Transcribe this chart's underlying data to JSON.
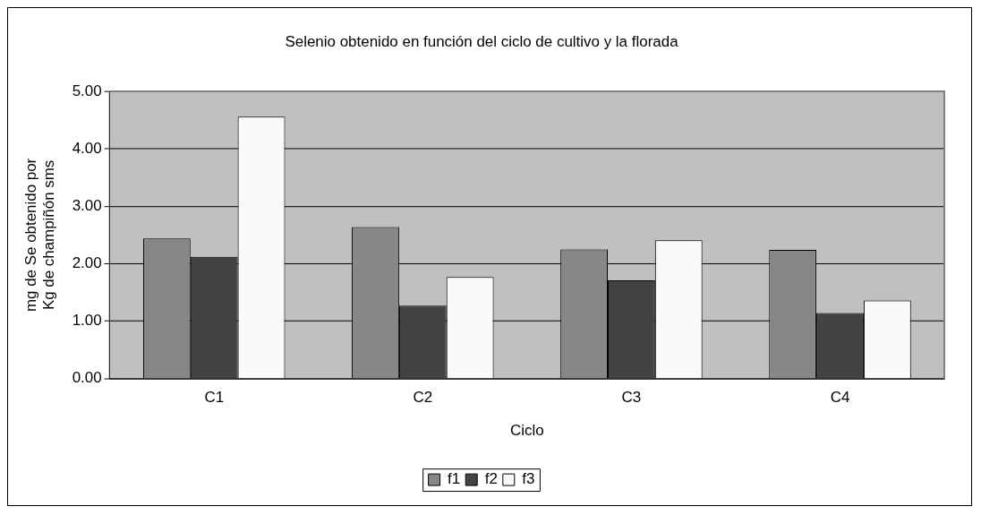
{
  "chart_data": {
    "type": "bar",
    "title": "Selenio obtenido en función del ciclo de cultivo y la florada",
    "xlabel": "Ciclo",
    "ylabel": "mg de Se obtenido por Kg de champiñón sms",
    "categories": [
      "C1",
      "C2",
      "C3",
      "C4"
    ],
    "series": [
      {
        "name": "f1",
        "color": "#878787",
        "values": [
          2.44,
          2.64,
          2.25,
          2.24
        ]
      },
      {
        "name": "f2",
        "color": "#434343",
        "values": [
          2.12,
          1.27,
          1.71,
          1.14
        ]
      },
      {
        "name": "f3",
        "color": "#fafafa",
        "values": [
          4.56,
          1.77,
          2.41,
          1.36
        ]
      }
    ],
    "ylim": [
      0,
      5
    ],
    "yticks": [
      {
        "value": 0,
        "label": "0.00"
      },
      {
        "value": 1,
        "label": "1.00"
      },
      {
        "value": 2,
        "label": "2.00"
      },
      {
        "value": 3,
        "label": "3.00"
      },
      {
        "value": 4,
        "label": "4.00"
      },
      {
        "value": 5,
        "label": "5.00"
      }
    ],
    "grid": "y",
    "legend": "bottom"
  }
}
